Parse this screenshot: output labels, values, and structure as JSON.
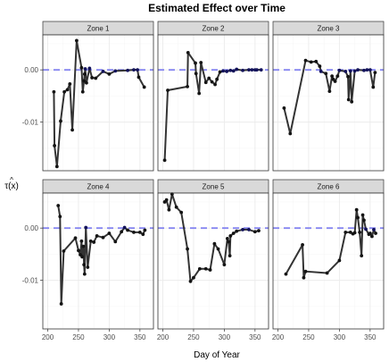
{
  "chart_data": {
    "type": "line",
    "title": "Estimated Effect over Time",
    "xlabel": "Day of Year",
    "ylabel": "τ(x)",
    "ylabel_hat": "^",
    "xlim": [
      192,
      372
    ],
    "ylim": [
      -0.0193,
      0.0067
    ],
    "x_ticks": [
      {
        "value": 200,
        "label": "200"
      },
      {
        "value": 250,
        "label": "250"
      },
      {
        "value": 300,
        "label": "300"
      },
      {
        "value": 350,
        "label": "350"
      }
    ],
    "y_ticks": [
      {
        "value": 0.0,
        "label": "0.00"
      },
      {
        "value": -0.01,
        "label": "-0.01"
      }
    ],
    "grid": true,
    "reference_line": {
      "y": 0.0,
      "style": "dashed",
      "color": "#6b6bf0"
    },
    "colors": {
      "line": "#333333",
      "point": "#141414",
      "point_near_zero": "#12125a",
      "panel_bg": "#ffffff",
      "strip_bg": "#d9d9d9",
      "grid_major": "#ebebeb",
      "grid_minor": "#f5f5f5"
    },
    "panels": [
      {
        "name": "Zone 1",
        "points": [
          [
            210,
            -0.0042
          ],
          [
            211,
            -0.0145
          ],
          [
            215,
            -0.0185
          ],
          [
            221,
            -0.0098
          ],
          [
            227,
            -0.0042
          ],
          [
            232,
            -0.0038
          ],
          [
            236,
            -0.0027
          ],
          [
            240,
            -0.0115
          ],
          [
            247,
            0.0056
          ],
          [
            255,
            0.0004
          ],
          [
            257,
            -0.0042
          ],
          [
            259,
            -0.0021
          ],
          [
            260,
            -0.0008
          ],
          [
            261,
            0.0002
          ],
          [
            263,
            -0.0025
          ],
          [
            268,
            0.0003
          ],
          [
            272,
            -0.0015
          ],
          [
            278,
            -0.0016
          ],
          [
            290,
            -0.0003
          ],
          [
            300,
            -0.0008
          ],
          [
            310,
            -0.0002
          ],
          [
            330,
            -0.0001
          ],
          [
            340,
            0.0
          ],
          [
            346,
            0.0
          ],
          [
            348,
            -0.0014
          ],
          [
            357,
            -0.0033
          ]
        ]
      },
      {
        "name": "Zone 2",
        "points": [
          [
            203,
            -0.0173
          ],
          [
            208,
            -0.0039
          ],
          [
            240,
            -0.0032
          ],
          [
            241,
            0.0033
          ],
          [
            253,
            0.0013
          ],
          [
            254,
            -0.0007
          ],
          [
            259,
            -0.0045
          ],
          [
            262,
            0.0014
          ],
          [
            270,
            -0.0024
          ],
          [
            275,
            -0.0016
          ],
          [
            280,
            -0.0023
          ],
          [
            285,
            -0.0028
          ],
          [
            288,
            -0.0018
          ],
          [
            293,
            -0.0004
          ],
          [
            298,
            -0.0002
          ],
          [
            304,
            -0.0003
          ],
          [
            310,
            -0.0001
          ],
          [
            315,
            -0.0002
          ],
          [
            320,
            0.0001
          ],
          [
            330,
            -0.0001
          ],
          [
            340,
            0.0
          ],
          [
            345,
            0.0
          ],
          [
            350,
            0.0
          ],
          [
            353,
            0.0
          ],
          [
            360,
            0.0
          ]
        ]
      },
      {
        "name": "Zone 3",
        "points": [
          [
            210,
            -0.0073
          ],
          [
            220,
            -0.0122
          ],
          [
            245,
            0.0018
          ],
          [
            254,
            0.0015
          ],
          [
            262,
            0.0016
          ],
          [
            268,
            0.0007
          ],
          [
            270,
            -0.0003
          ],
          [
            278,
            -0.0007
          ],
          [
            284,
            -0.0041
          ],
          [
            288,
            -0.0012
          ],
          [
            290,
            -0.0018
          ],
          [
            293,
            -0.0022
          ],
          [
            297,
            -0.0012
          ],
          [
            300,
            -0.0001
          ],
          [
            310,
            -0.0003
          ],
          [
            314,
            -0.0013
          ],
          [
            315,
            -0.0057
          ],
          [
            318,
            -0.0002
          ],
          [
            320,
            -0.0061
          ],
          [
            325,
            -0.0002
          ],
          [
            330,
            0.0
          ],
          [
            340,
            -0.0001
          ],
          [
            345,
            0.0
          ],
          [
            350,
            0.0
          ],
          [
            355,
            -0.0033
          ],
          [
            358,
            -0.0005
          ]
        ]
      },
      {
        "name": "Zone 4",
        "points": [
          [
            217,
            0.0043
          ],
          [
            220,
            0.0022
          ],
          [
            222,
            -0.0145
          ],
          [
            226,
            -0.0044
          ],
          [
            245,
            -0.0019
          ],
          [
            250,
            -0.0043
          ],
          [
            253,
            -0.0051
          ],
          [
            255,
            -0.0025
          ],
          [
            256,
            -0.0055
          ],
          [
            258,
            -0.0035
          ],
          [
            259,
            -0.007
          ],
          [
            260,
            -0.0088
          ],
          [
            262,
            0.0001
          ],
          [
            265,
            -0.0075
          ],
          [
            270,
            -0.0025
          ],
          [
            275,
            -0.0027
          ],
          [
            280,
            -0.0015
          ],
          [
            290,
            -0.0018
          ],
          [
            300,
            -0.001
          ],
          [
            310,
            -0.0026
          ],
          [
            320,
            -0.0007
          ],
          [
            325,
            0.0001
          ],
          [
            330,
            -0.0004
          ],
          [
            340,
            -0.0008
          ],
          [
            350,
            -0.0008
          ],
          [
            355,
            -0.0012
          ],
          [
            358,
            -0.0004
          ]
        ]
      },
      {
        "name": "Zone 5",
        "points": [
          [
            203,
            0.005
          ],
          [
            206,
            0.0054
          ],
          [
            210,
            0.0035
          ],
          [
            215,
            0.0065
          ],
          [
            222,
            0.004
          ],
          [
            230,
            0.003
          ],
          [
            240,
            -0.004
          ],
          [
            245,
            -0.0102
          ],
          [
            250,
            -0.0095
          ],
          [
            260,
            -0.0078
          ],
          [
            270,
            -0.0078
          ],
          [
            277,
            -0.008
          ],
          [
            284,
            -0.003
          ],
          [
            290,
            -0.004
          ],
          [
            300,
            -0.007
          ],
          [
            305,
            -0.002
          ],
          [
            307,
            -0.0026
          ],
          [
            309,
            -0.0053
          ],
          [
            310,
            -0.0015
          ],
          [
            315,
            -0.001
          ],
          [
            320,
            -0.0006
          ],
          [
            330,
            -0.0003
          ],
          [
            340,
            -0.0003
          ],
          [
            350,
            -0.0007
          ],
          [
            356,
            -0.0005
          ]
        ]
      },
      {
        "name": "Zone 6",
        "points": [
          [
            213,
            -0.0088
          ],
          [
            240,
            -0.0032
          ],
          [
            242,
            -0.0095
          ],
          [
            245,
            -0.0083
          ],
          [
            280,
            -0.0086
          ],
          [
            300,
            -0.0062
          ],
          [
            310,
            -0.0008
          ],
          [
            318,
            -0.0008
          ],
          [
            322,
            -0.0011
          ],
          [
            325,
            -0.0009
          ],
          [
            328,
            0.0035
          ],
          [
            330,
            0.002
          ],
          [
            333,
            -0.0008
          ],
          [
            336,
            -0.0053
          ],
          [
            338,
            0.0025
          ],
          [
            340,
            0.0015
          ],
          [
            343,
            -0.0002
          ],
          [
            348,
            -0.0012
          ],
          [
            350,
            -0.001
          ],
          [
            353,
            -0.0016
          ],
          [
            356,
            -0.0003
          ],
          [
            359,
            -0.001
          ]
        ]
      }
    ]
  }
}
